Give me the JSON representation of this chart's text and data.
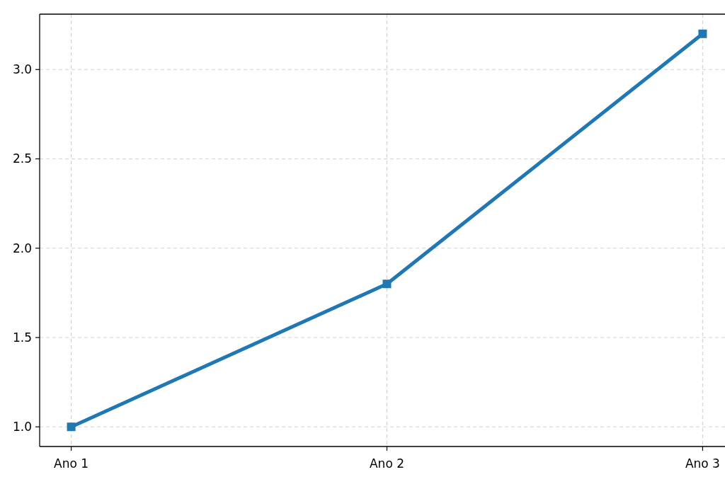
{
  "chart_data": {
    "type": "line",
    "categories": [
      "Ano 1",
      "Ano 2",
      "Ano 3"
    ],
    "series": [
      {
        "color": "#1f77b4",
        "values": [
          1.0,
          1.8,
          3.2
        ]
      }
    ],
    "ylim": [
      0.89,
      3.31
    ],
    "yticks": [
      {
        "value": 1,
        "label": "1.0"
      },
      {
        "value": 1.5,
        "label": "1.5"
      },
      {
        "value": 2,
        "label": "2.0"
      },
      {
        "value": 2.5,
        "label": "2.5"
      },
      {
        "value": 3,
        "label": "3.0"
      }
    ],
    "grid": true,
    "marker": "square",
    "line_style": "solid"
  }
}
